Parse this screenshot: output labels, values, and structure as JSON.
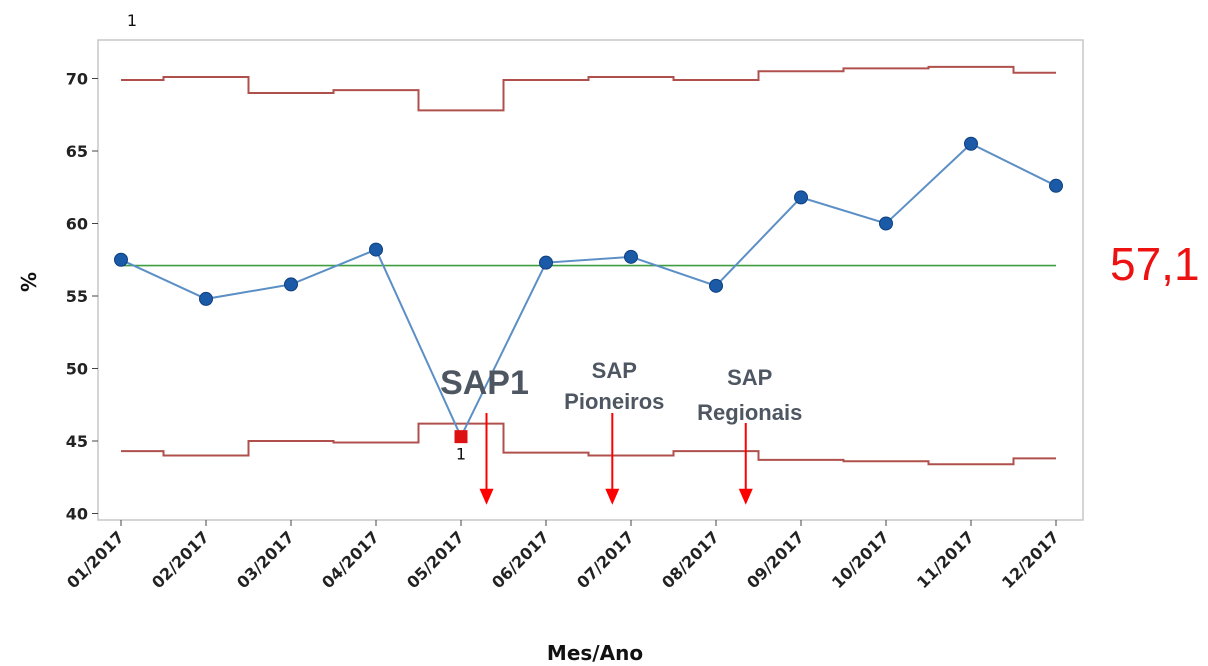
{
  "chart_data": {
    "type": "line",
    "xlabel": "Mes/Ano",
    "ylabel": "%",
    "ylim": [
      40,
      72
    ],
    "yticks": [
      40,
      45,
      50,
      55,
      60,
      65,
      70
    ],
    "categories": [
      "01/2017",
      "02/2017",
      "03/2017",
      "04/2017",
      "05/2017",
      "06/2017",
      "07/2017",
      "08/2017",
      "09/2017",
      "10/2017",
      "11/2017",
      "12/2017"
    ],
    "series": [
      {
        "values": [
          57.5,
          54.8,
          55.8,
          58.2,
          45.3,
          57.3,
          57.7,
          55.7,
          61.8,
          60.0,
          65.5,
          62.6
        ]
      }
    ],
    "upper_limit": [
      69.9,
      70.1,
      69.0,
      69.2,
      67.8,
      69.9,
      70.1,
      69.9,
      70.5,
      70.7,
      70.8,
      70.4
    ],
    "lower_limit": [
      44.3,
      44.0,
      45.0,
      44.9,
      46.2,
      44.2,
      44.0,
      44.3,
      43.7,
      43.6,
      43.4,
      43.8
    ],
    "center_line": 57.1,
    "center_label": "57,1",
    "out_of_control": [
      {
        "index": 4,
        "flag": "1"
      }
    ],
    "top_flag": "1",
    "annotations": [
      {
        "lines": [
          "SAP1"
        ],
        "x": 4.3,
        "arrow_to": 40.6
      },
      {
        "lines": [
          "SAP",
          "Pioneiros"
        ],
        "x": 5.78,
        "arrow_to": 40.6
      },
      {
        "lines": [
          "SAP",
          "Regionais"
        ],
        "x": 7.35,
        "arrow_to": 40.6
      }
    ],
    "colors": {
      "data_line": "#5b8fc6",
      "data_point": "#1b5aa6",
      "out_of_control_point": "#dd1111",
      "limits": "#b0504d",
      "center_line": "#3f9e3f",
      "arrow": "#ff0000",
      "annotation_text": "#4d5661",
      "center_text": "#ee1111"
    }
  }
}
